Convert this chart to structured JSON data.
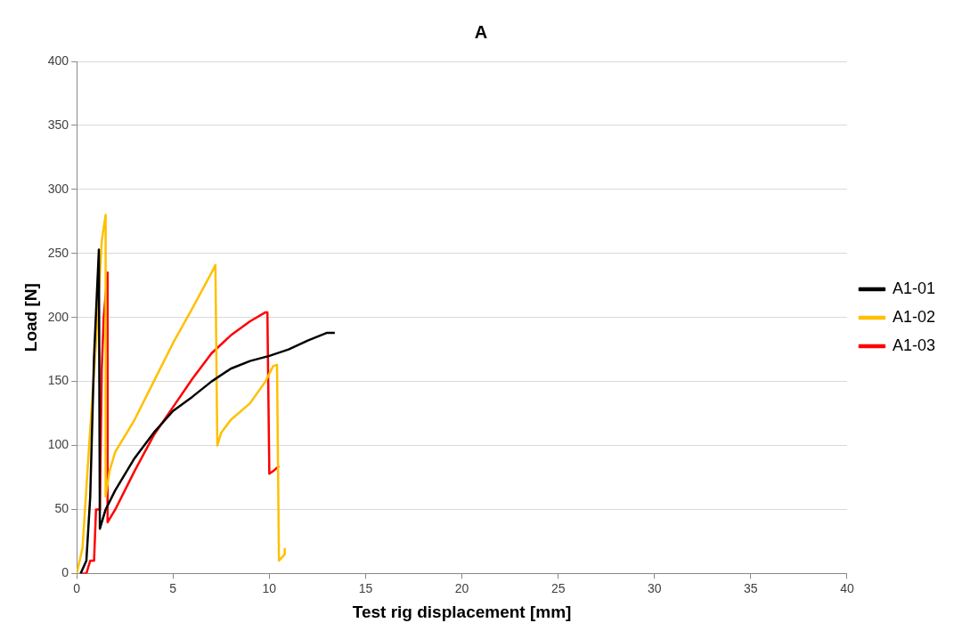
{
  "chart_data": {
    "type": "line",
    "title": "A",
    "xlabel": "Test rig displacement [mm]",
    "ylabel": "Load [N]",
    "xlim": [
      0,
      40
    ],
    "xticks": [
      0,
      5,
      10,
      15,
      20,
      25,
      30,
      35,
      40
    ],
    "ylim": [
      0,
      400
    ],
    "yticks": [
      0,
      50,
      100,
      150,
      200,
      250,
      300,
      350,
      400
    ],
    "grid": "y",
    "legend": "right",
    "marker": "none",
    "line_style": "solid",
    "series": [
      {
        "name": "A1-01",
        "color": "#000000",
        "x": [
          0.2,
          0.5,
          0.7,
          0.9,
          1.15,
          1.2,
          1.5,
          2,
          3,
          4,
          5,
          6,
          7,
          8,
          9,
          10,
          11,
          12,
          13,
          13.4
        ],
        "values": [
          0,
          10,
          60,
          170,
          253,
          35,
          50,
          65,
          90,
          110,
          127,
          138,
          150,
          160,
          166,
          170,
          175,
          182,
          188,
          188
        ]
      },
      {
        "name": "A1-02",
        "color": "#ffc000",
        "x": [
          0,
          0.3,
          0.6,
          1.0,
          1.3,
          1.5,
          1.5,
          1.7,
          2,
          3,
          4,
          5,
          6,
          7,
          7.2,
          7.3,
          7.5,
          8,
          9,
          9.8,
          10.2,
          10.4,
          10.5,
          10.8,
          10.8
        ],
        "values": [
          0,
          20,
          90,
          180,
          260,
          280,
          60,
          80,
          95,
          120,
          150,
          180,
          207,
          235,
          241,
          100,
          110,
          120,
          133,
          150,
          162,
          163,
          10,
          15,
          20
        ]
      },
      {
        "name": "A1-03",
        "color": "#ff0000",
        "x": [
          0.2,
          0.5,
          0.7,
          0.9,
          1.0,
          1.2,
          1.3,
          1.4,
          1.6,
          1.6,
          2,
          3,
          4,
          5,
          6,
          7,
          8,
          9,
          9.8,
          9.9,
          10,
          10.2,
          10.5
        ],
        "values": [
          0,
          0,
          10,
          10,
          50,
          50,
          160,
          200,
          235,
          40,
          50,
          80,
          108,
          130,
          152,
          172,
          186,
          197,
          204,
          204,
          78,
          80,
          84
        ]
      }
    ]
  }
}
